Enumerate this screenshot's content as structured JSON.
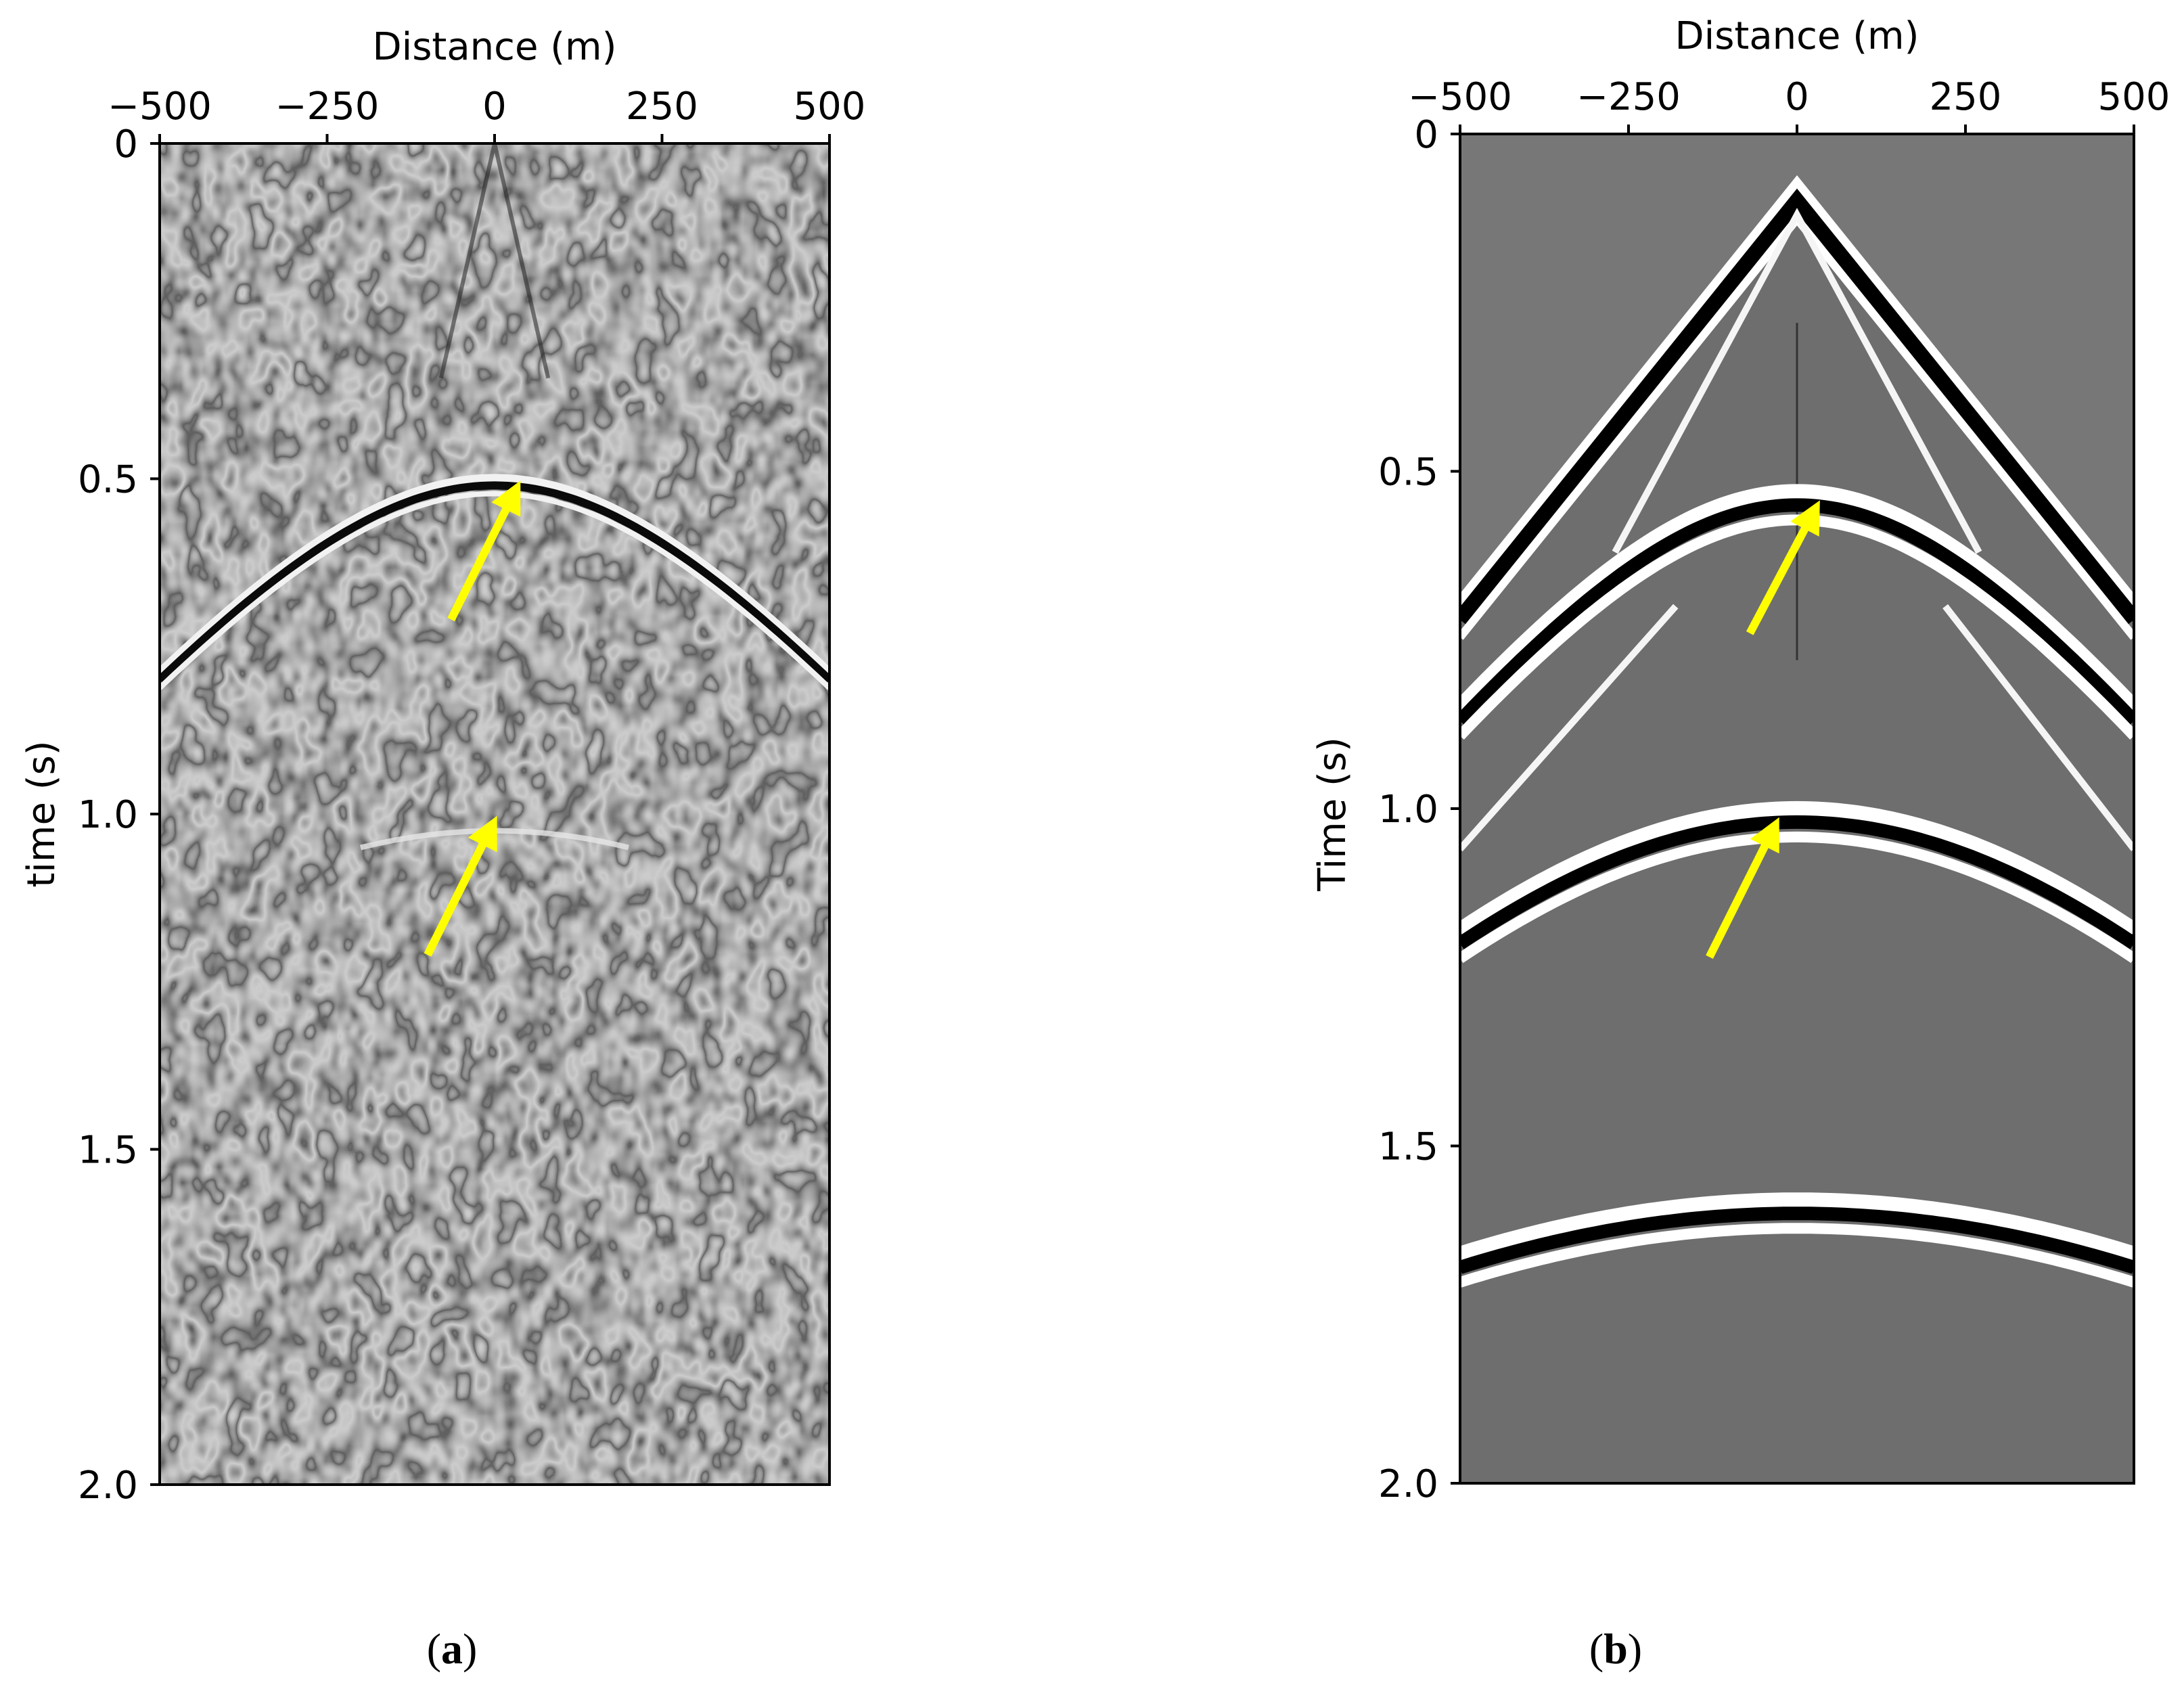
{
  "chart_data": [
    {
      "panel": "(a)",
      "caption_letter": "a",
      "type": "heatmap",
      "x_axis_label": "Distance (m)",
      "y_axis_label": "time (s)",
      "x_axis_position": "top",
      "xlim": [
        -500,
        500
      ],
      "ylim": [
        0,
        2.0
      ],
      "xticks": [
        -500,
        -250,
        0,
        250,
        500
      ],
      "xtick_labels": [
        "−500",
        "−250",
        "0",
        "250",
        "500"
      ],
      "yticks": [
        0,
        0.5,
        1.0,
        1.5,
        2.0
      ],
      "ytick_labels": [
        "0",
        "0.5",
        "1.0",
        "1.5",
        "2.0"
      ],
      "colormap": "grayscale",
      "grid": false,
      "reflection_events": [
        {
          "apex_x": 0,
          "apex_t": 0.51,
          "edge_t": 0.8,
          "strength": "strong"
        },
        {
          "apex_x": 0,
          "apex_t": 1.03,
          "half_width": 200,
          "strength": "weak"
        }
      ],
      "annotations": [
        {
          "type": "arrow",
          "color": "#ffff00",
          "from": [
            -65,
            0.71
          ],
          "to": [
            30,
            0.52
          ]
        },
        {
          "type": "arrow",
          "color": "#ffff00",
          "from": [
            -100,
            1.21
          ],
          "to": [
            -5,
            1.02
          ]
        }
      ]
    },
    {
      "panel": "(b)",
      "caption_letter": "b",
      "type": "heatmap",
      "x_axis_label": "Distance (m)",
      "y_axis_label": "Time (s)",
      "x_axis_position": "top",
      "xlim": [
        -500,
        500
      ],
      "ylim": [
        0,
        2.0
      ],
      "xticks": [
        -500,
        -250,
        0,
        250,
        500
      ],
      "xtick_labels": [
        "−500",
        "−250",
        "0",
        "250",
        "500"
      ],
      "yticks": [
        0,
        0.5,
        1.0,
        1.5,
        2.0
      ],
      "ytick_labels": [
        "0",
        "0.5",
        "1.0",
        "1.5",
        "2.0"
      ],
      "colormap": "grayscale",
      "grid": false,
      "direct_wave": {
        "apex_x": 0,
        "apex_t": 0.1,
        "edge_t": 0.72
      },
      "reflection_events": [
        {
          "apex_x": 0,
          "apex_t": 0.55,
          "edge_t": 0.87
        },
        {
          "apex_x": 0,
          "apex_t": 1.02,
          "edge_t": 1.2
        },
        {
          "apex_x": 0,
          "apex_t": 1.6,
          "edge_t": 1.68
        }
      ],
      "annotations": [
        {
          "type": "arrow",
          "color": "#ffff00",
          "from": [
            -70,
            0.74
          ],
          "to": [
            25,
            0.56
          ]
        },
        {
          "type": "arrow",
          "color": "#ffff00",
          "from": [
            -130,
            1.22
          ],
          "to": [
            -35,
            1.03
          ]
        }
      ]
    }
  ]
}
